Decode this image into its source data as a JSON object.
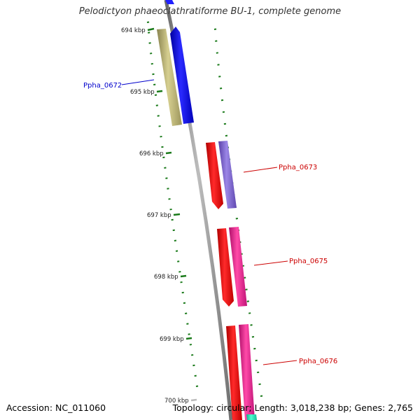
{
  "title": "Pelodictyon phaeoclathratiforme BU-1, complete genome",
  "footer": {
    "accession": "Accession: NC_011060",
    "summary": "Topology: circular; Length: 3,018,238 bp; Genes: 2,765"
  },
  "ticks": [
    "694 kbp",
    "695 kbp",
    "696 kbp",
    "697 kbp",
    "698 kbp",
    "699 kbp",
    "700 kbp"
  ],
  "gene_labels": [
    {
      "text": "Ppha_0672",
      "color": "#0000cc"
    },
    {
      "text": "Ppha_0673",
      "color": "#cc0000"
    },
    {
      "text": "Ppha_0675",
      "color": "#cc0000"
    },
    {
      "text": "Ppha_0676",
      "color": "#cc0000"
    }
  ],
  "colors": {
    "backbone": "#8a8a8a",
    "tick_dash": "#1a7a1a",
    "olive": "#b8b06a",
    "blue": "#0000ee",
    "red": "#ee0000",
    "purple": "#7a60d0",
    "magenta": "#ee1a8a",
    "teal": "#20e0b0"
  }
}
